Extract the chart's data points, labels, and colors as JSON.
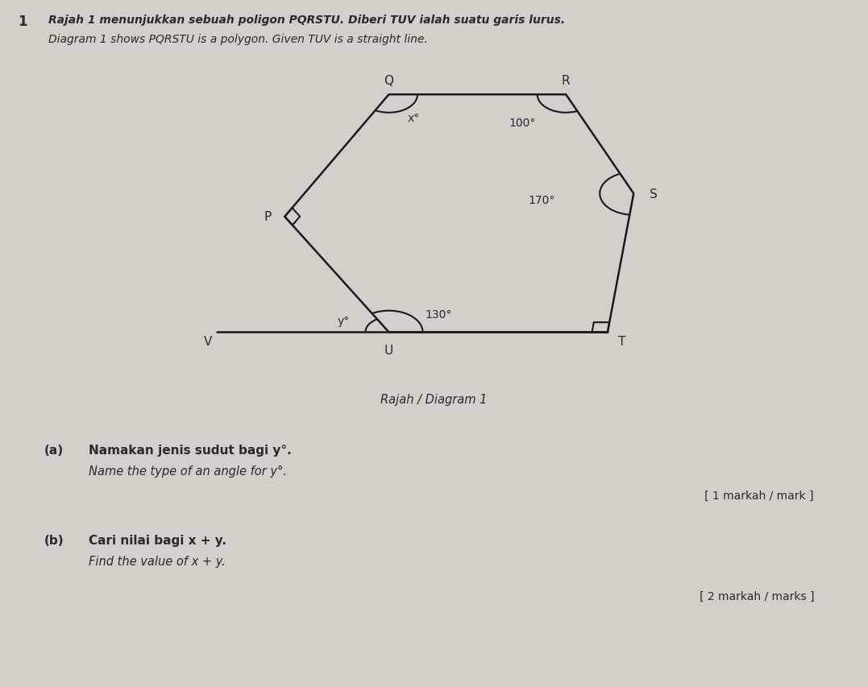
{
  "bg_color": "#d3cfc9",
  "title_number": "1",
  "line1_malay": "Rajah 1 menunjukkan sebuah poligon PQRSTU. Diberi TUV ialah suatu garis lurus.",
  "line1_english": "Diagram 1 shows PQRSTU is a polygon. Given TUV is a straight line.",
  "diagram_caption": "Rajah / Diagram 1",
  "qa_label": "(a)",
  "qa_malay": "Namakan jenis sudut bagi y°.",
  "qa_english": "Name the type of an angle for y°.",
  "qa_marks": "[ 1 markah / mark ]",
  "qb_label": "(b)",
  "qb_malay": "Cari nilai bagi x + y.",
  "qb_english": "Find the value of x + y.",
  "qb_marks": "[ 2 markah / marks ]",
  "text_color": "#2a2a2a",
  "line_color": "#1a1a1a"
}
